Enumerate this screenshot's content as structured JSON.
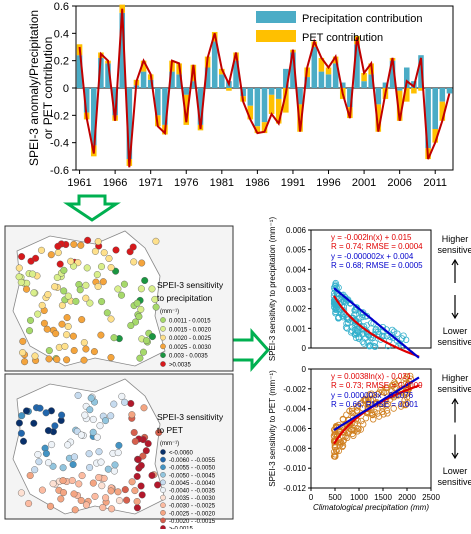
{
  "colors": {
    "precip": "#4bacc6",
    "pet": "#ffc000",
    "line": "#c00000",
    "arrow": "#00b050",
    "fit_red": "#e00000",
    "fit_blue": "#0000cc",
    "sc1": "#33b0cc",
    "sc2": "#d08020"
  },
  "chart_data": [
    {
      "type": "bar",
      "ylabel": "SPEI-3 anomaly/Precipitation\nor PET contribution",
      "ylim": [
        -0.6,
        0.6
      ],
      "yticks": [
        "0.6",
        "0.4",
        "0.2",
        "0",
        "-0.2",
        "-0.4",
        "-0.6"
      ],
      "xticks": [
        "1961",
        "1966",
        "1971",
        "1976",
        "1981",
        "1986",
        "1991",
        "1996",
        "2001",
        "2006",
        "2011"
      ],
      "x_start": 1961,
      "x_end": 2013,
      "legend": [
        "Precipitation contribution",
        "PET contribution"
      ],
      "legend_position": "top-right",
      "series": [
        {
          "name": "Precipitation contribution",
          "values": [
            0.24,
            -0.18,
            -0.42,
            0.22,
            0.18,
            -0.2,
            0.55,
            -0.52,
            0.02,
            0.12,
            0.06,
            -0.2,
            -0.27,
            0.12,
            0.1,
            -0.05,
            0.05,
            -0.27,
            0.15,
            0.34,
            0.1,
            0.05,
            0.2,
            -0.06,
            -0.13,
            -0.28,
            -0.25,
            -0.05,
            -0.08,
            0.14,
            0.26,
            -0.12,
            0.08,
            0.3,
            0.12,
            0.1,
            0.18,
            0.04,
            -0.14,
            0.32,
            0.05,
            0.1,
            -0.12,
            0.04,
            0.2,
            -0.02,
            0.15,
            0.05,
            0.24,
            -0.44,
            -0.3,
            -0.1,
            -0.04
          ]
        },
        {
          "name": "PET contribution",
          "values": [
            0.08,
            -0.05,
            -0.08,
            0.04,
            0.02,
            -0.04,
            0.06,
            -0.05,
            0.04,
            0.08,
            0.04,
            -0.08,
            -0.07,
            0.08,
            0.08,
            -0.22,
            0.12,
            -0.04,
            0.08,
            0.07,
            0.04,
            -0.02,
            0.06,
            -0.04,
            -0.1,
            -0.05,
            -0.08,
            -0.14,
            -0.18,
            -0.18,
            0.02,
            -0.2,
            0.07,
            0.04,
            0.1,
            0.05,
            0.05,
            -0.08,
            -0.08,
            0.06,
            0.06,
            0.08,
            -0.2,
            -0.08,
            0.02,
            -0.22,
            -0.1,
            -0.04,
            -0.02,
            -0.08,
            -0.1,
            -0.14,
            0.0
          ]
        },
        {
          "name": "SPEI-3 anomaly",
          "values": [
            0.3,
            -0.22,
            -0.48,
            0.25,
            0.2,
            -0.24,
            0.58,
            -0.58,
            0.05,
            0.2,
            0.1,
            -0.28,
            -0.33,
            0.2,
            0.18,
            -0.25,
            0.17,
            -0.3,
            0.22,
            0.4,
            0.14,
            0.03,
            0.26,
            -0.1,
            -0.23,
            -0.33,
            -0.32,
            -0.19,
            -0.26,
            -0.04,
            0.28,
            -0.32,
            0.15,
            0.34,
            0.22,
            0.15,
            0.23,
            -0.04,
            -0.22,
            0.37,
            0.11,
            0.18,
            -0.32,
            -0.04,
            0.22,
            -0.24,
            0.05,
            0.01,
            0.22,
            -0.52,
            -0.4,
            -0.24,
            -0.04
          ]
        }
      ]
    },
    {
      "type": "scatter",
      "ylabel": "SPEI-3 sensitivity to precipitation (mm⁻¹)",
      "ylim": [
        0,
        0.006
      ],
      "xlim": [
        0,
        2500
      ],
      "yticks": [
        "0.006",
        "0.005",
        "0.004",
        "0.003",
        "0.002",
        "0.001",
        "0"
      ],
      "eq1": "y = -0.002ln(x) + 0.015",
      "stat1": "R = 0.74; RMSE = 0.0004",
      "eq2": "y = -0.000002x + 0.004",
      "stat2": "R = 0.68; RMSE = 0.0005",
      "label_high": "Higher\nsensitive",
      "label_low": "Lower\nsensitive"
    },
    {
      "type": "scatter",
      "ylabel": "SPEI-3 sensitivity to PET (mm⁻¹)",
      "xlabel": "Climatological precipitation (mm)",
      "ylim": [
        -0.012,
        0
      ],
      "xlim": [
        0,
        2500
      ],
      "yticks": [
        "-0.012",
        "-0.010",
        "-0.008",
        "-0.006",
        "-0.004",
        "-0.002",
        "0"
      ],
      "xticks": [
        "0",
        "500",
        "1000",
        "1500",
        "2000",
        "2500"
      ],
      "eq1": "y = 0.0038ln(x) - 0.031",
      "stat1": "R = 0.73; RMSE = 0.0009",
      "eq2": "y = 0.000003x - 0.0076",
      "stat2": "R = 0.66; RMSE = 0.001",
      "label_high": "Higher\nsensitive",
      "label_low": "Lower\nsensitive"
    }
  ],
  "map1": {
    "title": "SPEI-3 sensitivity\nto precipitation",
    "unit": "(mm⁻¹)",
    "legend": [
      {
        "label": "0.0011 - 0.0015",
        "color": "#a6d96a"
      },
      {
        "label": "0.0015 - 0.0020",
        "color": "#d9ef8b"
      },
      {
        "label": "0.0020 - 0.0025",
        "color": "#fee08b"
      },
      {
        "label": "0.0025 - 0.0030",
        "color": "#f4a43c"
      },
      {
        "label": "0.003 - 0.0035",
        "color": "#1a9641"
      },
      {
        "label": ">0.0035",
        "color": "#d7191c"
      }
    ]
  },
  "map2": {
    "title": "SPEI-3 sensitivity\nto PET",
    "unit": "(mm⁻¹)",
    "legend": [
      {
        "label": "<-0.0060",
        "color": "#08306b"
      },
      {
        "label": "-0.0060 - -0.0055",
        "color": "#2166ac"
      },
      {
        "label": "-0.0055 - -0.0050",
        "color": "#4393c3"
      },
      {
        "label": "-0.0050 - -0.0045",
        "color": "#92c5de"
      },
      {
        "label": "-0.0045 - -0.0040",
        "color": "#c6dbef"
      },
      {
        "label": "-0.0040 - -0.0035",
        "color": "#eef3f8"
      },
      {
        "label": "-0.0035 - -0.0030",
        "color": "#fde0d2"
      },
      {
        "label": "-0.0030 - -0.0025",
        "color": "#fcbba1"
      },
      {
        "label": "-0.0025 - -0.0020",
        "color": "#f4a582"
      },
      {
        "label": "-0.0020 - -0.0015",
        "color": "#d6604d"
      },
      {
        "label": ">-0.0015",
        "color": "#b2182b"
      }
    ]
  }
}
